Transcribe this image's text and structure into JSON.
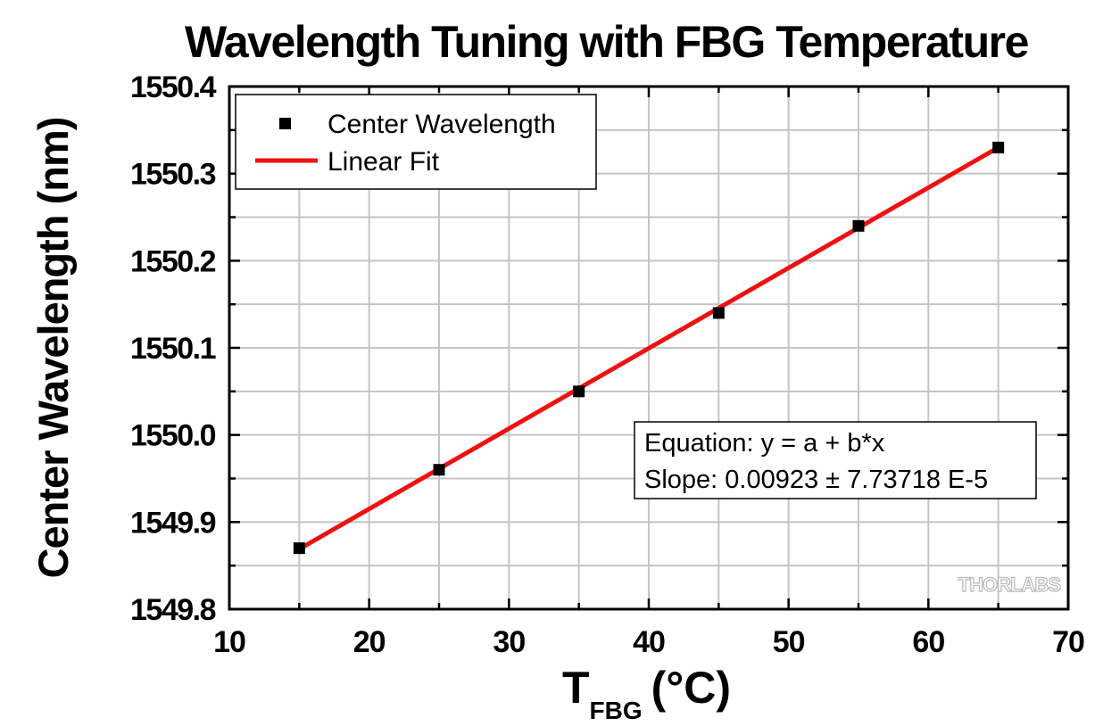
{
  "chart_data": {
    "type": "scatter",
    "title": "Wavelength Tuning with FBG Temperature",
    "xlabel_main": "T",
    "xlabel_sub": "FBG",
    "xlabel_unit": "(°C)",
    "ylabel": "Center Wavelength (nm)",
    "xlim": [
      10,
      70
    ],
    "ylim": [
      1549.8,
      1550.4
    ],
    "x_ticks": [
      10,
      20,
      30,
      40,
      50,
      60,
      70
    ],
    "x_tick_labels": [
      "10",
      "20",
      "30",
      "40",
      "50",
      "60",
      "70"
    ],
    "y_ticks": [
      1549.8,
      1549.9,
      1550.0,
      1550.1,
      1550.2,
      1550.3,
      1550.4
    ],
    "y_tick_labels": [
      "1549.8",
      "1549.9",
      "1550.0",
      "1550.1",
      "1550.2",
      "1550.3",
      "1550.4"
    ],
    "grid": true,
    "legend_position": "top-left",
    "series": [
      {
        "name": "Center Wavelength",
        "kind": "scatter",
        "marker": "square",
        "color": "#000000",
        "x": [
          15,
          25,
          35,
          45,
          55,
          65
        ],
        "y": [
          1549.87,
          1549.96,
          1550.05,
          1550.14,
          1550.24,
          1550.33
        ]
      },
      {
        "name": "Linear Fit",
        "kind": "line",
        "color": "#ee1111",
        "x": [
          15,
          65
        ],
        "y": [
          1549.869,
          1550.33
        ]
      }
    ],
    "annotation": {
      "line1": "Equation: y = a + b*x",
      "line2": "Slope: 0.00923 ± 7.73718 E-5"
    },
    "watermark": "THORLABS"
  }
}
